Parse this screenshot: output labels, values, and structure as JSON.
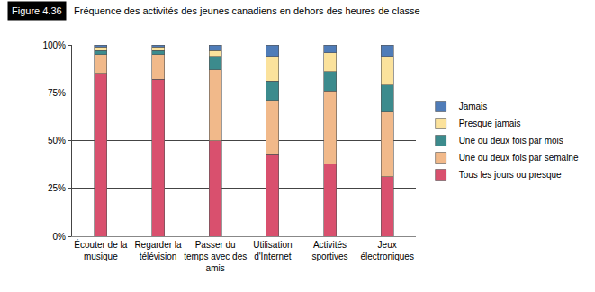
{
  "chart_data": {
    "type": "bar",
    "title": "Fréquence des activités des jeunes canadiens en dehors des heures de classe",
    "annotations": [
      {
        "text": "Figure 4.36"
      }
    ],
    "categories": [
      "Écouter de la musique",
      "Regarder la télévision",
      "Passer du temps avec des amis",
      "Utilisation d'Internet",
      "Activités sportives",
      "Jeux électroniques"
    ],
    "series": [
      {
        "name": "Tous les jours ou presque",
        "color": "#d9506e",
        "values": [
          85,
          82,
          50,
          43,
          38,
          31
        ]
      },
      {
        "name": "Une ou deux fois par semaine",
        "color": "#f1b98a",
        "values": [
          10,
          13,
          37,
          28,
          38,
          34
        ]
      },
      {
        "name": "Une ou deux fois par mois",
        "color": "#3c8b8d",
        "values": [
          2,
          2,
          7,
          10,
          10,
          14
        ]
      },
      {
        "name": "Presque jamais",
        "color": "#fbe29c",
        "values": [
          2,
          2,
          3,
          13,
          10,
          15
        ]
      },
      {
        "name": "Jamais",
        "color": "#4f7cb8",
        "values": [
          1,
          1,
          3,
          6,
          4,
          6
        ]
      }
    ],
    "stacked": true,
    "ylim": [
      0,
      100
    ],
    "yticks": [
      {
        "value": 0,
        "label": "0%"
      },
      {
        "value": 25,
        "label": "25%"
      },
      {
        "value": 50,
        "label": "50%"
      },
      {
        "value": 75,
        "label": "75%"
      },
      {
        "value": 100,
        "label": "100%"
      }
    ],
    "grid": true,
    "legend": "right"
  }
}
